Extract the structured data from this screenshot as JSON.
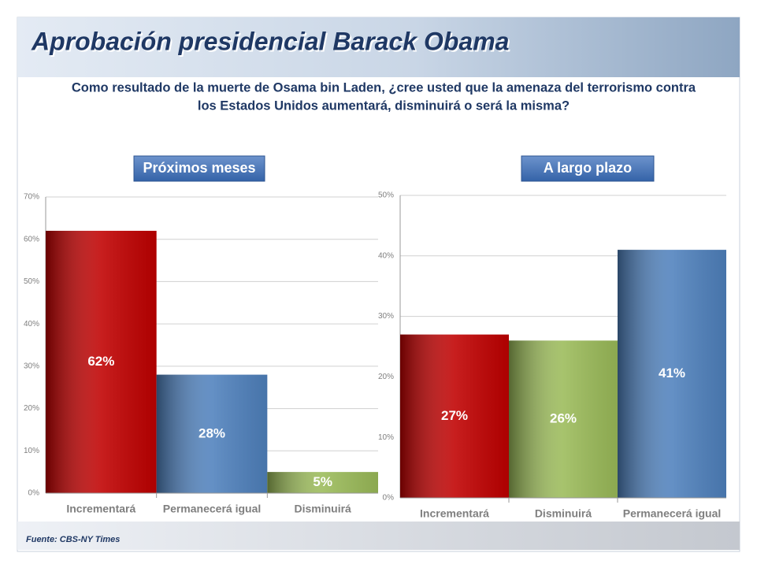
{
  "title": "Aprobación presidencial Barack Obama",
  "question": [
    "Como resultado de la muerte de Osama bin Laden, ¿cree usted que la amenaza del terrorismo contra",
    "los Estados Unidos aumentará, disminuirá o será la misma?"
  ],
  "source": "Fuente: CBS-NY Times",
  "chart_data": [
    {
      "type": "bar",
      "title": "Próximos meses",
      "categories": [
        "Incrementará",
        "Permanecerá igual",
        "Disminuirá"
      ],
      "values": [
        62,
        28,
        5
      ],
      "value_labels": [
        "62%",
        "28%",
        "5%"
      ],
      "colors": [
        "#c00000",
        "#4f81bd",
        "#9bbb59"
      ],
      "ylim": [
        0,
        70
      ],
      "yticks": [
        {
          "value": 0,
          "label": "0%"
        },
        {
          "value": 10,
          "label": "10%"
        },
        {
          "value": 20,
          "label": "20%"
        },
        {
          "value": 30,
          "label": "30%"
        },
        {
          "value": 40,
          "label": "40%"
        },
        {
          "value": 50,
          "label": "50%"
        },
        {
          "value": 60,
          "label": "60%"
        },
        {
          "value": 70,
          "label": "70%"
        }
      ],
      "grid": true
    },
    {
      "type": "bar",
      "title": "A largo plazo",
      "categories": [
        "Incrementará",
        "Disminuirá",
        "Permanecerá igual"
      ],
      "values": [
        27,
        26,
        41
      ],
      "value_labels": [
        "27%",
        "26%",
        "41%"
      ],
      "colors": [
        "#c00000",
        "#9bbb59",
        "#4f81bd"
      ],
      "ylim": [
        0,
        50
      ],
      "yticks": [
        {
          "value": 0,
          "label": "0%"
        },
        {
          "value": 10,
          "label": "10%"
        },
        {
          "value": 20,
          "label": "20%"
        },
        {
          "value": 30,
          "label": "30%"
        },
        {
          "value": 40,
          "label": "40%"
        },
        {
          "value": 50,
          "label": "50%"
        }
      ],
      "grid": true
    }
  ]
}
